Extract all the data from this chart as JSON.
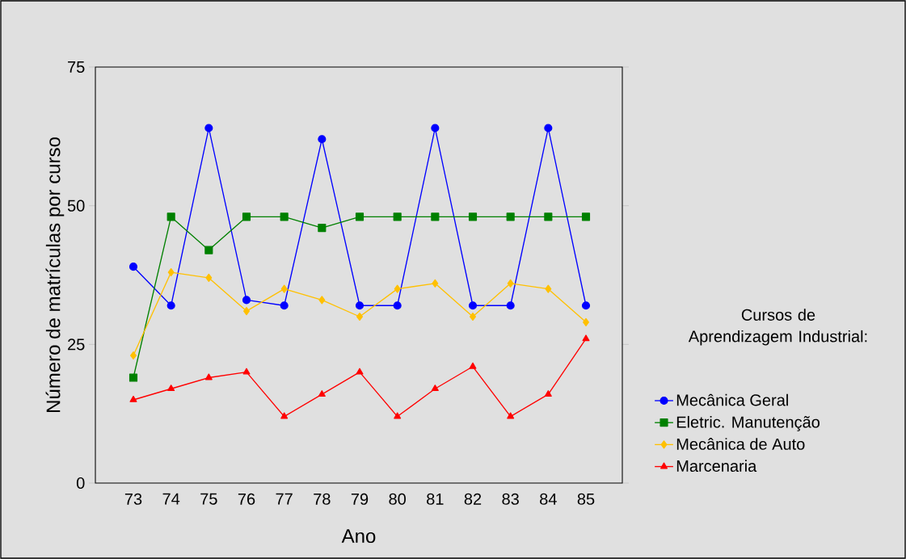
{
  "chart_data": {
    "type": "line",
    "xlabel": "Ano",
    "ylabel": "Número de matrículas por curso",
    "legend_title": "Cursos de Aprendizagem Industrial:",
    "legend": "right",
    "grid": false,
    "categories": [
      "73",
      "74",
      "75",
      "76",
      "77",
      "78",
      "79",
      "80",
      "81",
      "82",
      "83",
      "84",
      "85"
    ],
    "ylim": [
      0,
      75
    ],
    "yticks": [
      0,
      25,
      50,
      75
    ],
    "series": [
      {
        "name": "Mecânica Geral",
        "color": "#0000ff",
        "marker": "circle",
        "values": [
          39,
          32,
          64,
          33,
          32,
          62,
          32,
          32,
          64,
          32,
          32,
          64,
          32
        ]
      },
      {
        "name": "Eletric. Manutenção",
        "color": "#008000",
        "marker": "square",
        "values": [
          19,
          48,
          42,
          48,
          48,
          46,
          48,
          48,
          48,
          48,
          48,
          48,
          48
        ]
      },
      {
        "name": "Mecânica de Auto",
        "color": "#ffc000",
        "marker": "diamond",
        "values": [
          23,
          38,
          37,
          31,
          35,
          33,
          30,
          35,
          36,
          30,
          36,
          35,
          29
        ]
      },
      {
        "name": "Marcenaria",
        "color": "#ff0000",
        "marker": "triangle",
        "values": [
          15,
          17,
          19,
          20,
          12,
          16,
          20,
          12,
          17,
          21,
          12,
          16,
          26
        ]
      }
    ]
  }
}
